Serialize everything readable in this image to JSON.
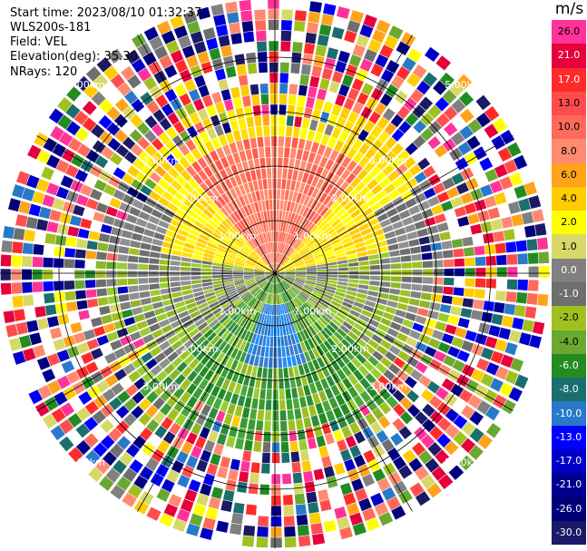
{
  "header": {
    "start_time": "Start time: 2023/08/10 01:32:37",
    "instrument": "WLS200s-181",
    "field": "Field: VEL",
    "elevation": "Elevation(deg): 35.30",
    "nrays": "NRays: 120"
  },
  "plot": {
    "nrays": 120,
    "nbins": 26,
    "ring_labels": [
      "1.00km",
      "2.00km",
      "3.00km",
      "5.00km"
    ],
    "grid_color": "#000000"
  },
  "colorbar": {
    "unit": "m/s",
    "labels": [
      "26.0",
      "21.0",
      "17.0",
      "13.0",
      "10.0",
      "8.0",
      "6.0",
      "4.0",
      "2.0",
      "1.0",
      "0.0",
      "-1.0",
      "-2.0",
      "-4.0",
      "-6.0",
      "-8.0",
      "-10.0",
      "-13.0",
      "-17.0",
      "-21.0",
      "-26.0",
      "-30.0"
    ],
    "colors": [
      "#ff3399",
      "#e6003c",
      "#ff2a2a",
      "#ff4d4d",
      "#ff6a5a",
      "#ff8a70",
      "#ffa31a",
      "#ffcc00",
      "#ffff00",
      "#d8d868",
      "#808080",
      "#6e6e6e",
      "#a0c020",
      "#6aa832",
      "#228b22",
      "#1a6e6e",
      "#2979c9",
      "#0000ff",
      "#0000c8",
      "#000090",
      "#00007a",
      "#1a1a66"
    ]
  }
}
